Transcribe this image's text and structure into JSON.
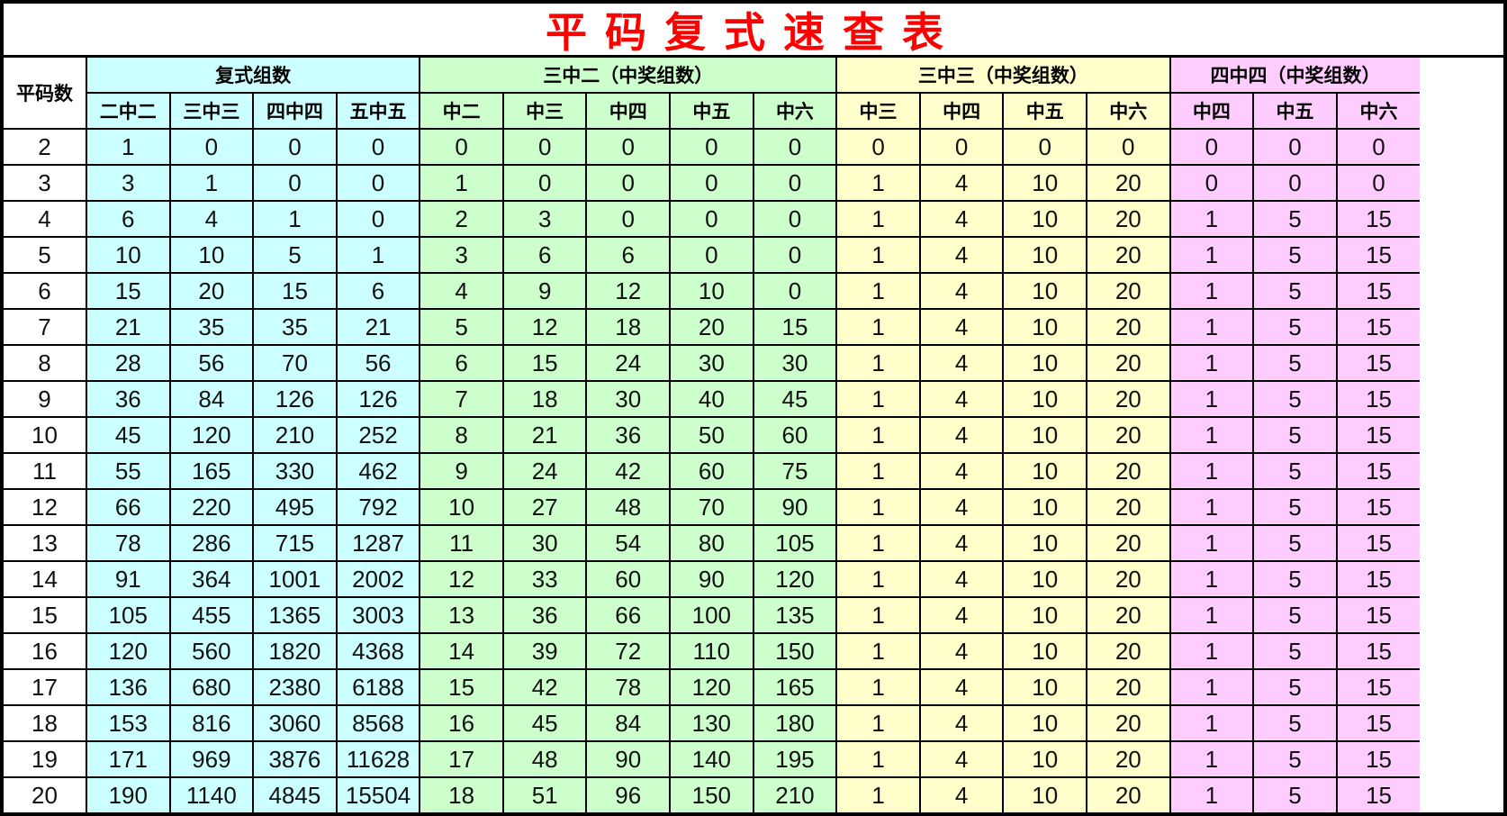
{
  "title": "平码复式速查表",
  "header": {
    "first_col": "平码数",
    "groups": [
      {
        "label": "复式组数",
        "color": "#ccffff",
        "columns": [
          "二中二",
          "三中三",
          "四中四",
          "五中五"
        ]
      },
      {
        "label": "三中二（中奖组数）",
        "color": "#ccffcc",
        "columns": [
          "中二",
          "中三",
          "中四",
          "中五",
          "中六"
        ]
      },
      {
        "label": "三中三（中奖组数）",
        "color": "#ffffcc",
        "columns": [
          "中三",
          "中四",
          "中五",
          "中六"
        ]
      },
      {
        "label": "四中四（中奖组数）",
        "color": "#ffccff",
        "columns": [
          "中四",
          "中五",
          "中六"
        ]
      }
    ]
  },
  "rows": [
    [
      "2",
      "1",
      "0",
      "0",
      "0",
      "0",
      "0",
      "0",
      "0",
      "0",
      "0",
      "0",
      "0",
      "0",
      "0",
      "0",
      "0"
    ],
    [
      "3",
      "3",
      "1",
      "0",
      "0",
      "1",
      "0",
      "0",
      "0",
      "0",
      "1",
      "4",
      "10",
      "20",
      "0",
      "0",
      "0"
    ],
    [
      "4",
      "6",
      "4",
      "1",
      "0",
      "2",
      "3",
      "0",
      "0",
      "0",
      "1",
      "4",
      "10",
      "20",
      "1",
      "5",
      "15"
    ],
    [
      "5",
      "10",
      "10",
      "5",
      "1",
      "3",
      "6",
      "6",
      "0",
      "0",
      "1",
      "4",
      "10",
      "20",
      "1",
      "5",
      "15"
    ],
    [
      "6",
      "15",
      "20",
      "15",
      "6",
      "4",
      "9",
      "12",
      "10",
      "0",
      "1",
      "4",
      "10",
      "20",
      "1",
      "5",
      "15"
    ],
    [
      "7",
      "21",
      "35",
      "35",
      "21",
      "5",
      "12",
      "18",
      "20",
      "15",
      "1",
      "4",
      "10",
      "20",
      "1",
      "5",
      "15"
    ],
    [
      "8",
      "28",
      "56",
      "70",
      "56",
      "6",
      "15",
      "24",
      "30",
      "30",
      "1",
      "4",
      "10",
      "20",
      "1",
      "5",
      "15"
    ],
    [
      "9",
      "36",
      "84",
      "126",
      "126",
      "7",
      "18",
      "30",
      "40",
      "45",
      "1",
      "4",
      "10",
      "20",
      "1",
      "5",
      "15"
    ],
    [
      "10",
      "45",
      "120",
      "210",
      "252",
      "8",
      "21",
      "36",
      "50",
      "60",
      "1",
      "4",
      "10",
      "20",
      "1",
      "5",
      "15"
    ],
    [
      "11",
      "55",
      "165",
      "330",
      "462",
      "9",
      "24",
      "42",
      "60",
      "75",
      "1",
      "4",
      "10",
      "20",
      "1",
      "5",
      "15"
    ],
    [
      "12",
      "66",
      "220",
      "495",
      "792",
      "10",
      "27",
      "48",
      "70",
      "90",
      "1",
      "4",
      "10",
      "20",
      "1",
      "5",
      "15"
    ],
    [
      "13",
      "78",
      "286",
      "715",
      "1287",
      "11",
      "30",
      "54",
      "80",
      "105",
      "1",
      "4",
      "10",
      "20",
      "1",
      "5",
      "15"
    ],
    [
      "14",
      "91",
      "364",
      "1001",
      "2002",
      "12",
      "33",
      "60",
      "90",
      "120",
      "1",
      "4",
      "10",
      "20",
      "1",
      "5",
      "15"
    ],
    [
      "15",
      "105",
      "455",
      "1365",
      "3003",
      "13",
      "36",
      "66",
      "100",
      "135",
      "1",
      "4",
      "10",
      "20",
      "1",
      "5",
      "15"
    ],
    [
      "16",
      "120",
      "560",
      "1820",
      "4368",
      "14",
      "39",
      "72",
      "110",
      "150",
      "1",
      "4",
      "10",
      "20",
      "1",
      "5",
      "15"
    ],
    [
      "17",
      "136",
      "680",
      "2380",
      "6188",
      "15",
      "42",
      "78",
      "120",
      "165",
      "1",
      "4",
      "10",
      "20",
      "1",
      "5",
      "15"
    ],
    [
      "18",
      "153",
      "816",
      "3060",
      "8568",
      "16",
      "45",
      "84",
      "130",
      "180",
      "1",
      "4",
      "10",
      "20",
      "1",
      "5",
      "15"
    ],
    [
      "19",
      "171",
      "969",
      "3876",
      "11628",
      "17",
      "48",
      "90",
      "140",
      "195",
      "1",
      "4",
      "10",
      "20",
      "1",
      "5",
      "15"
    ],
    [
      "20",
      "190",
      "1140",
      "4845",
      "15504",
      "18",
      "51",
      "96",
      "150",
      "210",
      "1",
      "4",
      "10",
      "20",
      "1",
      "5",
      "15"
    ]
  ]
}
